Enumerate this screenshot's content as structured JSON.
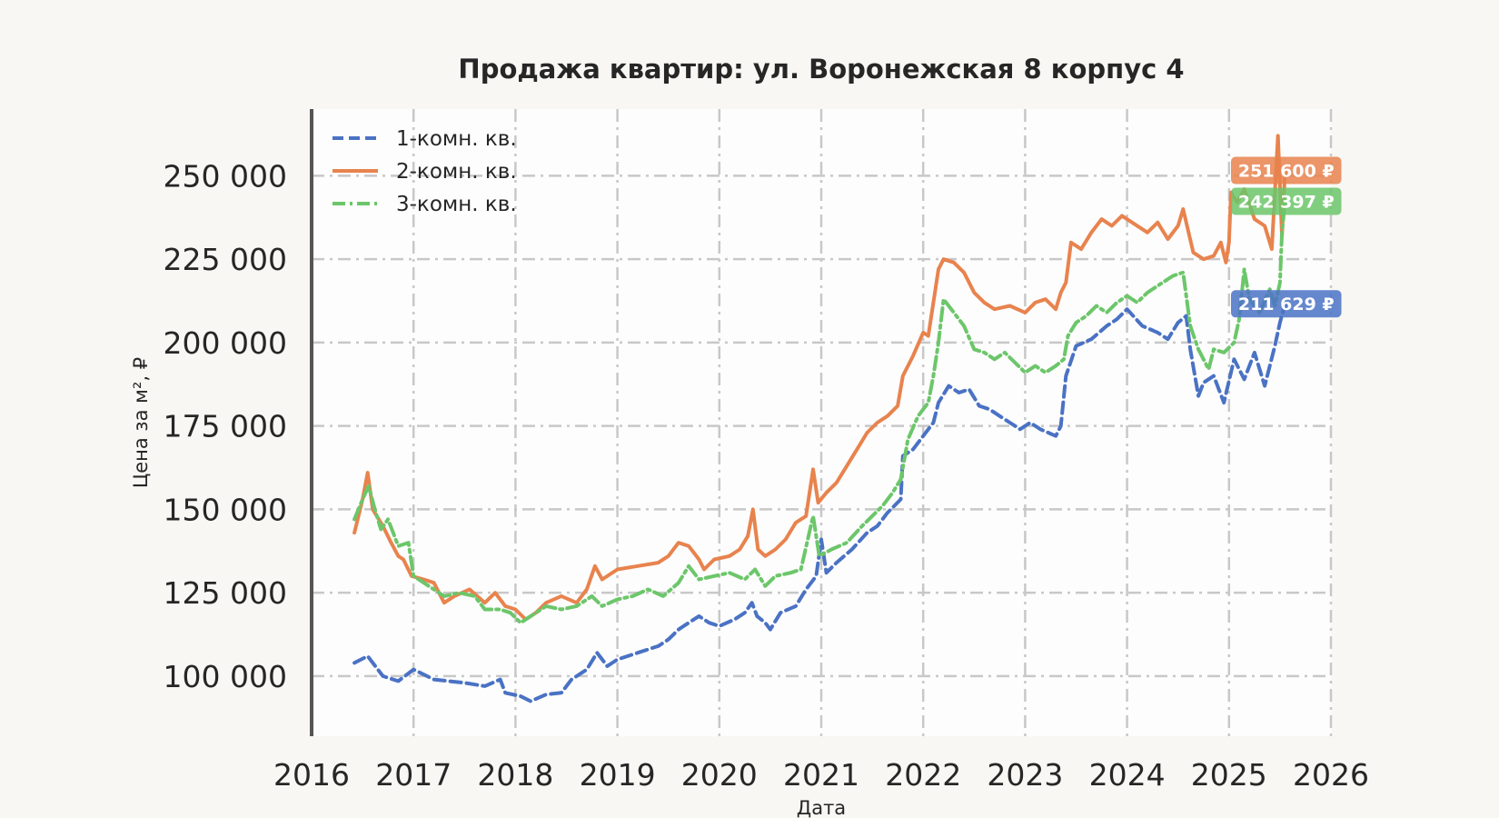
{
  "chart_data": {
    "type": "line",
    "title": "Продажа квартир: ул. Воронежская 8 корпус 4",
    "xlabel": "Дата",
    "ylabel": "Цена за м², ₽",
    "xlim": [
      2016.0,
      2026.0
    ],
    "ylim": [
      82000,
      270000
    ],
    "x_ticks": [
      "2016",
      "2017",
      "2018",
      "2019",
      "2020",
      "2021",
      "2022",
      "2023",
      "2024",
      "2025",
      "2026"
    ],
    "y_ticks": [
      "100 000",
      "125 000",
      "150 000",
      "175 000",
      "200 000",
      "225 000",
      "250 000"
    ],
    "grid": true,
    "legend_position": "top-left",
    "series": [
      {
        "name": "1-комн. кв.",
        "color": "#4a72c4",
        "dash": "dashed",
        "end_label": "211 629 ₽",
        "points": [
          [
            2016.42,
            104000
          ],
          [
            2016.55,
            106000
          ],
          [
            2016.7,
            100000
          ],
          [
            2016.85,
            98500
          ],
          [
            2017.0,
            102000
          ],
          [
            2017.2,
            99000
          ],
          [
            2017.5,
            98000
          ],
          [
            2017.7,
            97000
          ],
          [
            2017.85,
            99000
          ],
          [
            2017.9,
            95000
          ],
          [
            2018.05,
            94000
          ],
          [
            2018.15,
            92500
          ],
          [
            2018.3,
            94500
          ],
          [
            2018.45,
            95000
          ],
          [
            2018.55,
            99000
          ],
          [
            2018.7,
            102000
          ],
          [
            2018.8,
            107000
          ],
          [
            2018.9,
            103000
          ],
          [
            2019.0,
            105000
          ],
          [
            2019.2,
            107000
          ],
          [
            2019.4,
            109000
          ],
          [
            2019.5,
            111000
          ],
          [
            2019.6,
            114000
          ],
          [
            2019.7,
            116000
          ],
          [
            2019.8,
            118000
          ],
          [
            2019.9,
            116000
          ],
          [
            2020.0,
            115000
          ],
          [
            2020.15,
            117000
          ],
          [
            2020.25,
            119000
          ],
          [
            2020.32,
            122000
          ],
          [
            2020.37,
            118000
          ],
          [
            2020.45,
            116000
          ],
          [
            2020.5,
            114000
          ],
          [
            2020.6,
            119000
          ],
          [
            2020.75,
            121000
          ],
          [
            2020.85,
            126000
          ],
          [
            2020.95,
            130000
          ],
          [
            2021.0,
            141000
          ],
          [
            2021.05,
            131000
          ],
          [
            2021.15,
            134000
          ],
          [
            2021.3,
            138000
          ],
          [
            2021.45,
            143000
          ],
          [
            2021.55,
            145000
          ],
          [
            2021.65,
            149000
          ],
          [
            2021.78,
            153000
          ],
          [
            2021.8,
            166000
          ],
          [
            2021.9,
            168000
          ],
          [
            2022.0,
            172000
          ],
          [
            2022.1,
            176000
          ],
          [
            2022.15,
            182000
          ],
          [
            2022.25,
            187000
          ],
          [
            2022.35,
            185000
          ],
          [
            2022.45,
            186000
          ],
          [
            2022.55,
            181000
          ],
          [
            2022.65,
            180000
          ],
          [
            2022.75,
            178000
          ],
          [
            2022.85,
            176000
          ],
          [
            2022.95,
            174000
          ],
          [
            2023.05,
            176000
          ],
          [
            2023.15,
            174000
          ],
          [
            2023.3,
            172000
          ],
          [
            2023.35,
            175000
          ],
          [
            2023.4,
            190000
          ],
          [
            2023.5,
            199000
          ],
          [
            2023.65,
            201000
          ],
          [
            2023.8,
            205000
          ],
          [
            2023.9,
            207000
          ],
          [
            2024.0,
            210000
          ],
          [
            2024.15,
            205000
          ],
          [
            2024.3,
            203000
          ],
          [
            2024.4,
            201000
          ],
          [
            2024.5,
            206000
          ],
          [
            2024.58,
            208000
          ],
          [
            2024.62,
            198000
          ],
          [
            2024.7,
            184000
          ],
          [
            2024.75,
            188000
          ],
          [
            2024.85,
            190000
          ],
          [
            2024.95,
            182000
          ],
          [
            2025.05,
            195000
          ],
          [
            2025.15,
            189000
          ],
          [
            2025.25,
            197000
          ],
          [
            2025.35,
            187000
          ],
          [
            2025.45,
            199000
          ],
          [
            2025.5,
            206000
          ],
          [
            2025.55,
            211629
          ]
        ]
      },
      {
        "name": "2-комн. кв.",
        "color": "#e8834e",
        "dash": "solid",
        "end_label": "251 600 ₽",
        "points": [
          [
            2016.42,
            143000
          ],
          [
            2016.5,
            153000
          ],
          [
            2016.55,
            161000
          ],
          [
            2016.6,
            150000
          ],
          [
            2016.7,
            145000
          ],
          [
            2016.78,
            140000
          ],
          [
            2016.85,
            136000
          ],
          [
            2016.9,
            135000
          ],
          [
            2016.98,
            130000
          ],
          [
            2017.1,
            129000
          ],
          [
            2017.2,
            128000
          ],
          [
            2017.3,
            122000
          ],
          [
            2017.4,
            124000
          ],
          [
            2017.55,
            126000
          ],
          [
            2017.7,
            122000
          ],
          [
            2017.8,
            125000
          ],
          [
            2017.85,
            123000
          ],
          [
            2017.9,
            121000
          ],
          [
            2018.0,
            120000
          ],
          [
            2018.1,
            117000
          ],
          [
            2018.2,
            119000
          ],
          [
            2018.3,
            122000
          ],
          [
            2018.45,
            124000
          ],
          [
            2018.6,
            122000
          ],
          [
            2018.7,
            126000
          ],
          [
            2018.78,
            133000
          ],
          [
            2018.85,
            129000
          ],
          [
            2019.0,
            132000
          ],
          [
            2019.2,
            133000
          ],
          [
            2019.4,
            134000
          ],
          [
            2019.5,
            136000
          ],
          [
            2019.6,
            140000
          ],
          [
            2019.7,
            139000
          ],
          [
            2019.8,
            135000
          ],
          [
            2019.85,
            132000
          ],
          [
            2019.95,
            135000
          ],
          [
            2020.1,
            136000
          ],
          [
            2020.2,
            138000
          ],
          [
            2020.28,
            142000
          ],
          [
            2020.33,
            150000
          ],
          [
            2020.38,
            138000
          ],
          [
            2020.45,
            136000
          ],
          [
            2020.55,
            138000
          ],
          [
            2020.65,
            141000
          ],
          [
            2020.75,
            146000
          ],
          [
            2020.85,
            148000
          ],
          [
            2020.92,
            162000
          ],
          [
            2020.97,
            152000
          ],
          [
            2021.05,
            155000
          ],
          [
            2021.15,
            158000
          ],
          [
            2021.25,
            163000
          ],
          [
            2021.35,
            168000
          ],
          [
            2021.45,
            173000
          ],
          [
            2021.55,
            176000
          ],
          [
            2021.65,
            178000
          ],
          [
            2021.75,
            181000
          ],
          [
            2021.8,
            190000
          ],
          [
            2021.9,
            196000
          ],
          [
            2022.0,
            203000
          ],
          [
            2022.05,
            202000
          ],
          [
            2022.1,
            212000
          ],
          [
            2022.15,
            222000
          ],
          [
            2022.2,
            225000
          ],
          [
            2022.3,
            224000
          ],
          [
            2022.4,
            221000
          ],
          [
            2022.5,
            215000
          ],
          [
            2022.6,
            212000
          ],
          [
            2022.7,
            210000
          ],
          [
            2022.85,
            211000
          ],
          [
            2023.0,
            209000
          ],
          [
            2023.1,
            212000
          ],
          [
            2023.2,
            213000
          ],
          [
            2023.3,
            210000
          ],
          [
            2023.35,
            215000
          ],
          [
            2023.4,
            218000
          ],
          [
            2023.45,
            230000
          ],
          [
            2023.55,
            228000
          ],
          [
            2023.65,
            233000
          ],
          [
            2023.75,
            237000
          ],
          [
            2023.85,
            235000
          ],
          [
            2023.95,
            238000
          ],
          [
            2024.05,
            236000
          ],
          [
            2024.2,
            233000
          ],
          [
            2024.3,
            236000
          ],
          [
            2024.4,
            231000
          ],
          [
            2024.5,
            235000
          ],
          [
            2024.55,
            240000
          ],
          [
            2024.65,
            227000
          ],
          [
            2024.75,
            225000
          ],
          [
            2024.85,
            226000
          ],
          [
            2024.92,
            230000
          ],
          [
            2024.97,
            224000
          ],
          [
            2025.0,
            230000
          ],
          [
            2025.02,
            245000
          ],
          [
            2025.08,
            242000
          ],
          [
            2025.15,
            246000
          ],
          [
            2025.25,
            237000
          ],
          [
            2025.35,
            235000
          ],
          [
            2025.42,
            228000
          ],
          [
            2025.48,
            262000
          ],
          [
            2025.52,
            232000
          ],
          [
            2025.55,
            251600
          ]
        ]
      },
      {
        "name": "3-комн. кв.",
        "color": "#6cc66a",
        "dash": "dashdot",
        "end_label": "242 397 ₽",
        "points": [
          [
            2016.42,
            147000
          ],
          [
            2016.5,
            153000
          ],
          [
            2016.56,
            157000
          ],
          [
            2016.62,
            150000
          ],
          [
            2016.68,
            144000
          ],
          [
            2016.75,
            147000
          ],
          [
            2016.85,
            139000
          ],
          [
            2016.95,
            140000
          ],
          [
            2017.0,
            130000
          ],
          [
            2017.15,
            127000
          ],
          [
            2017.3,
            124000
          ],
          [
            2017.45,
            125000
          ],
          [
            2017.6,
            124000
          ],
          [
            2017.7,
            120000
          ],
          [
            2017.85,
            120000
          ],
          [
            2017.95,
            119000
          ],
          [
            2018.05,
            116000
          ],
          [
            2018.15,
            118000
          ],
          [
            2018.3,
            121000
          ],
          [
            2018.45,
            120000
          ],
          [
            2018.6,
            121000
          ],
          [
            2018.75,
            124000
          ],
          [
            2018.85,
            121000
          ],
          [
            2019.0,
            123000
          ],
          [
            2019.15,
            124000
          ],
          [
            2019.3,
            126000
          ],
          [
            2019.45,
            124000
          ],
          [
            2019.6,
            128000
          ],
          [
            2019.7,
            133000
          ],
          [
            2019.8,
            129000
          ],
          [
            2019.95,
            130000
          ],
          [
            2020.1,
            131000
          ],
          [
            2020.25,
            129000
          ],
          [
            2020.35,
            132000
          ],
          [
            2020.45,
            127000
          ],
          [
            2020.55,
            130000
          ],
          [
            2020.7,
            131000
          ],
          [
            2020.8,
            132000
          ],
          [
            2020.92,
            148000
          ],
          [
            2020.98,
            136000
          ],
          [
            2021.1,
            138000
          ],
          [
            2021.25,
            140000
          ],
          [
            2021.4,
            145000
          ],
          [
            2021.5,
            148000
          ],
          [
            2021.6,
            151000
          ],
          [
            2021.7,
            155000
          ],
          [
            2021.78,
            159000
          ],
          [
            2021.85,
            171000
          ],
          [
            2021.95,
            178000
          ],
          [
            2022.05,
            182000
          ],
          [
            2022.1,
            190000
          ],
          [
            2022.15,
            200000
          ],
          [
            2022.2,
            213000
          ],
          [
            2022.3,
            209000
          ],
          [
            2022.4,
            205000
          ],
          [
            2022.5,
            198000
          ],
          [
            2022.6,
            197000
          ],
          [
            2022.7,
            195000
          ],
          [
            2022.8,
            197000
          ],
          [
            2022.9,
            194000
          ],
          [
            2023.0,
            191000
          ],
          [
            2023.1,
            193000
          ],
          [
            2023.2,
            191000
          ],
          [
            2023.3,
            193000
          ],
          [
            2023.38,
            195000
          ],
          [
            2023.42,
            202000
          ],
          [
            2023.5,
            206000
          ],
          [
            2023.6,
            208000
          ],
          [
            2023.7,
            211000
          ],
          [
            2023.8,
            209000
          ],
          [
            2023.9,
            212000
          ],
          [
            2024.0,
            214000
          ],
          [
            2024.1,
            212000
          ],
          [
            2024.2,
            215000
          ],
          [
            2024.3,
            217000
          ],
          [
            2024.45,
            220000
          ],
          [
            2024.55,
            221000
          ],
          [
            2024.62,
            205000
          ],
          [
            2024.7,
            198000
          ],
          [
            2024.8,
            192000
          ],
          [
            2024.85,
            198000
          ],
          [
            2024.95,
            197000
          ],
          [
            2025.05,
            200000
          ],
          [
            2025.1,
            207000
          ],
          [
            2025.15,
            222000
          ],
          [
            2025.2,
            213000
          ],
          [
            2025.3,
            209000
          ],
          [
            2025.4,
            216000
          ],
          [
            2025.45,
            211000
          ],
          [
            2025.5,
            218000
          ],
          [
            2025.52,
            233000
          ],
          [
            2025.55,
            242397
          ]
        ]
      }
    ]
  }
}
